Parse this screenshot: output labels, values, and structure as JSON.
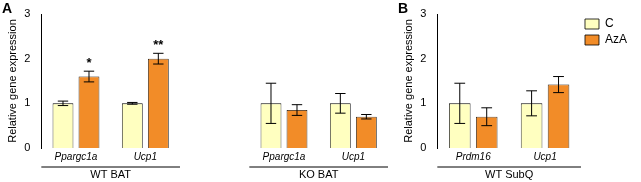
{
  "chart_data": [
    {
      "type": "bar",
      "title": "A",
      "y_label": "Relative gene expression",
      "groups": [
        {
          "name": "WT BAT",
          "categories": [
            "Ppargc1a",
            "Ucp1"
          ]
        },
        {
          "name": "KO BAT",
          "categories": [
            "Ppargc1a",
            "Ucp1"
          ]
        }
      ],
      "series": [
        {
          "name": "C",
          "color": "#ffffc0",
          "values": [
            1.0,
            1.0,
            1.0,
            1.0
          ],
          "errors": [
            0.05,
            0.02,
            0.45,
            0.22
          ]
        },
        {
          "name": "AzA",
          "color": "#f28c28",
          "values": [
            1.6,
            2.0,
            0.85,
            0.7
          ],
          "errors": [
            0.12,
            0.12,
            0.12,
            0.05
          ]
        }
      ],
      "annotations": [
        {
          "group": "WT BAT",
          "category": "Ppargc1a",
          "series": "AzA",
          "text": "*"
        },
        {
          "group": "WT BAT",
          "category": "Ucp1",
          "series": "AzA",
          "text": "**"
        }
      ],
      "ylim": [
        0,
        3
      ],
      "yticks": [
        0,
        1,
        2,
        3
      ],
      "grid": false
    },
    {
      "type": "bar",
      "title": "B",
      "y_label": "Relative gene expression",
      "groups": [
        {
          "name": "WT SubQ",
          "categories": [
            "Prdm16",
            "Ucp1"
          ]
        }
      ],
      "series": [
        {
          "name": "C",
          "color": "#ffffc0",
          "values": [
            1.0,
            1.0
          ],
          "errors": [
            0.45,
            0.28
          ]
        },
        {
          "name": "AzA",
          "color": "#f28c28",
          "values": [
            0.7,
            1.42
          ],
          "errors": [
            0.2,
            0.18
          ]
        }
      ],
      "ylim": [
        0,
        3
      ],
      "yticks": [
        0,
        1,
        2,
        3
      ],
      "grid": false,
      "legend": "top right"
    }
  ]
}
